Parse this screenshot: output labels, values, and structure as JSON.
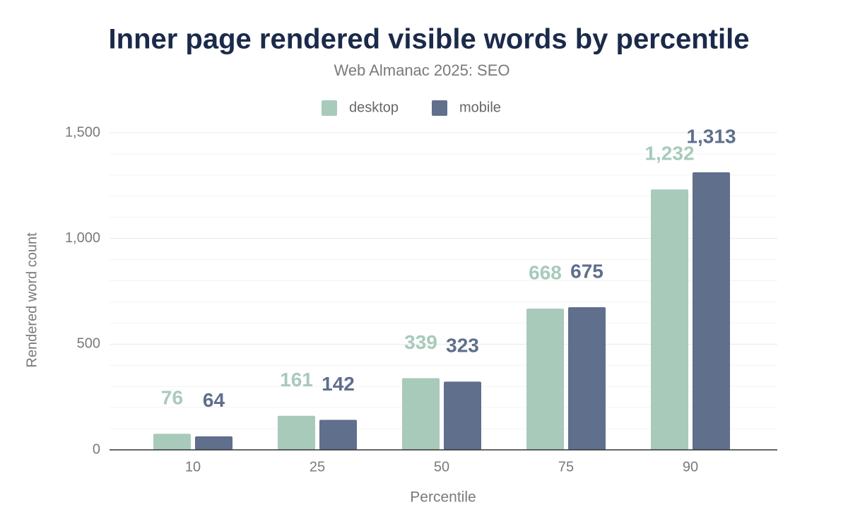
{
  "chart_data": {
    "type": "bar",
    "title": "Inner page rendered visible words by percentile",
    "subtitle": "Web Almanac 2025: SEO",
    "x_label": "Percentile",
    "y_label": "Rendered word count",
    "categories": [
      "10",
      "25",
      "50",
      "75",
      "90"
    ],
    "series": [
      {
        "name": "desktop",
        "color": "#a8cabb",
        "values": [
          76,
          161,
          339,
          668,
          1232
        ],
        "value_labels": [
          "76",
          "161",
          "339",
          "668",
          "1,232"
        ]
      },
      {
        "name": "mobile",
        "color": "#5f6f8c",
        "values": [
          64,
          142,
          323,
          675,
          1313
        ],
        "value_labels": [
          "64",
          "142",
          "323",
          "675",
          "1,313"
        ]
      }
    ],
    "ylim": [
      0,
      1500
    ],
    "yticks": [
      0,
      500,
      {
        "value": 1000,
        "label": "1,000"
      },
      {
        "value": 1500,
        "label": "1,500"
      }
    ],
    "minor_yticks": [
      100,
      200,
      300,
      400,
      600,
      700,
      800,
      900,
      1100,
      1200,
      1300,
      1400
    ],
    "grid": true,
    "legend": "top"
  }
}
